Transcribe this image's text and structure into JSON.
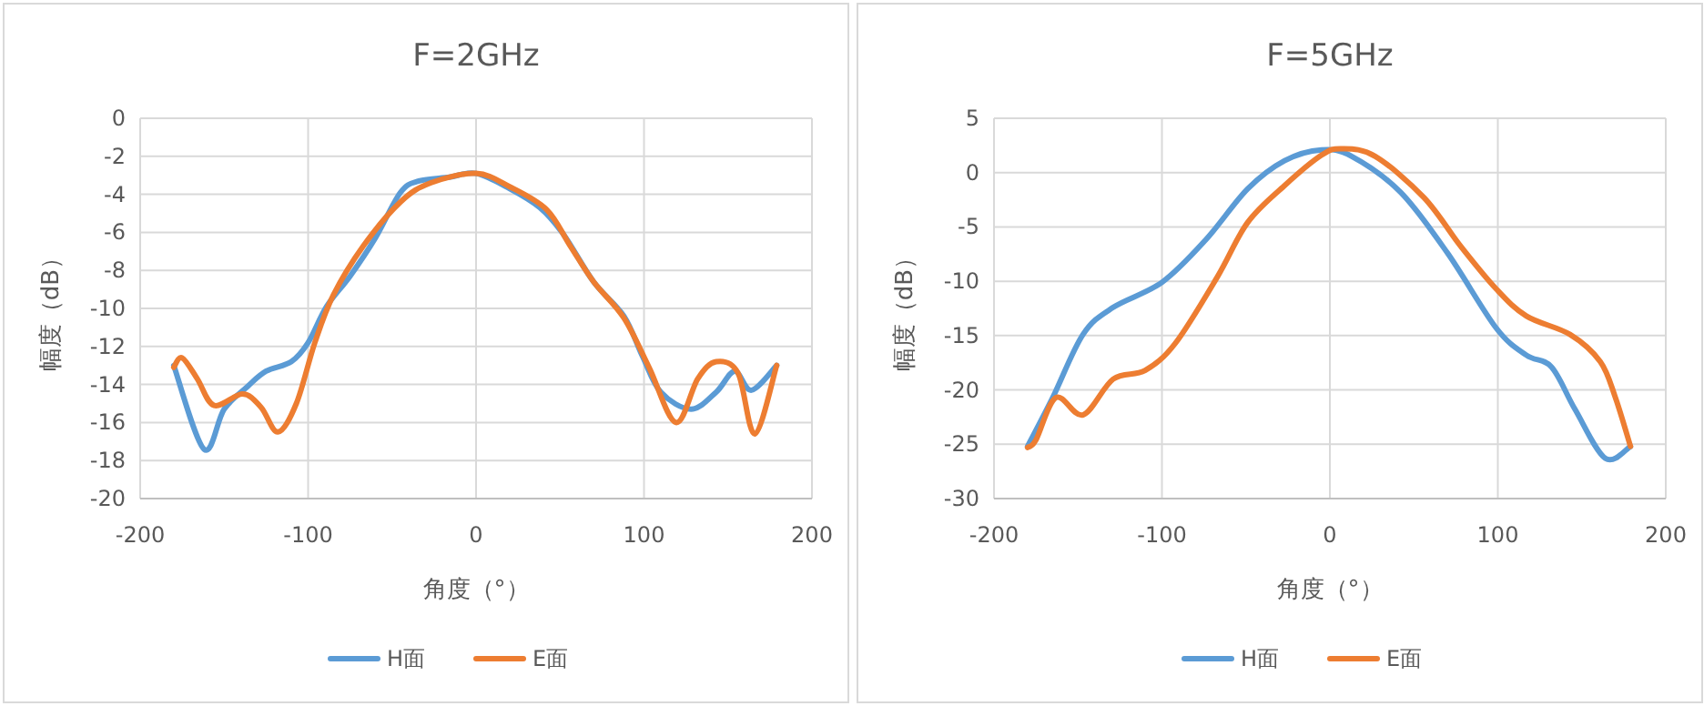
{
  "chart_data": [
    {
      "type": "line",
      "title": "F=2GHz",
      "xlabel": "角度（°）",
      "ylabel": "幅度（dB）",
      "xlim": [
        -200,
        200
      ],
      "xticks": [
        -200,
        -100,
        0,
        100,
        200
      ],
      "ylim": [
        -20,
        0
      ],
      "yticks": [
        -20,
        -18,
        -16,
        -14,
        -12,
        -10,
        -8,
        -6,
        -4,
        -2,
        0
      ],
      "grid": true,
      "legend": "bottom",
      "marker": "none",
      "series": [
        {
          "name": "H面",
          "color": "#5b9bd5",
          "x": [
            -180,
            -162,
            -150,
            -136,
            -125,
            -110,
            -100,
            -89,
            -75,
            -60,
            -45,
            -34,
            -16,
            0,
            20,
            38,
            52,
            70,
            88,
            99,
            110,
            128,
            143,
            154,
            164,
            179
          ],
          "values": [
            -13.0,
            -17.4,
            -15.3,
            -14.1,
            -13.3,
            -12.8,
            -11.8,
            -9.9,
            -8.3,
            -6.3,
            -3.9,
            -3.3,
            -3.1,
            -2.9,
            -3.7,
            -4.7,
            -6.1,
            -8.6,
            -10.4,
            -12.5,
            -14.4,
            -15.3,
            -14.4,
            -13.3,
            -14.3,
            -13.0
          ]
        },
        {
          "name": "E面",
          "color": "#ed7d31",
          "x": [
            -180,
            -175,
            -166,
            -156,
            -139,
            -128,
            -118,
            -107,
            -96,
            -85,
            -67,
            -45,
            -27,
            0,
            20,
            42,
            56,
            70,
            88,
            103,
            119,
            132,
            143,
            156,
            166,
            179
          ],
          "values": [
            -13.1,
            -12.6,
            -13.7,
            -15.1,
            -14.5,
            -15.2,
            -16.5,
            -15.0,
            -11.8,
            -9.3,
            -6.7,
            -4.4,
            -3.4,
            -2.9,
            -3.6,
            -4.8,
            -6.7,
            -8.6,
            -10.5,
            -13.1,
            -16.0,
            -13.7,
            -12.8,
            -13.4,
            -16.6,
            -13.0
          ]
        }
      ]
    },
    {
      "type": "line",
      "title": "F=5GHz",
      "xlabel": "角度（°）",
      "ylabel": "幅度（dB）",
      "xlim": [
        -200,
        200
      ],
      "xticks": [
        -200,
        -100,
        0,
        100,
        200
      ],
      "ylim": [
        -30,
        5
      ],
      "yticks": [
        -30,
        -25,
        -20,
        -15,
        -10,
        -5,
        0,
        5
      ],
      "grid": true,
      "legend": "bottom",
      "marker": "none",
      "series": [
        {
          "name": "H面",
          "color": "#5b9bd5",
          "x": [
            -180,
            -165,
            -147,
            -129,
            -100,
            -74,
            -49,
            -27,
            -5,
            13,
            42,
            70,
            99,
            117,
            132,
            146,
            164,
            179
          ],
          "values": [
            -25.2,
            -20.7,
            -14.9,
            -12.4,
            -10.1,
            -6.2,
            -1.5,
            1.1,
            2.1,
            1.5,
            -1.8,
            -7.4,
            -14.3,
            -16.8,
            -17.9,
            -21.8,
            -26.3,
            -25.2
          ]
        },
        {
          "name": "E面",
          "color": "#ed7d31",
          "x": [
            -180,
            -175,
            -163,
            -147,
            -129,
            -110,
            -92,
            -67,
            -49,
            -27,
            -5,
            7,
            27,
            56,
            78,
            99,
            117,
            143,
            161,
            170,
            179
          ],
          "values": [
            -25.3,
            -24.6,
            -20.7,
            -22.3,
            -19.0,
            -18.2,
            -15.7,
            -9.6,
            -4.6,
            -1.2,
            1.6,
            2.2,
            1.5,
            -2.3,
            -6.8,
            -10.7,
            -13.2,
            -14.9,
            -17.4,
            -20.7,
            -25.2
          ]
        }
      ]
    }
  ]
}
